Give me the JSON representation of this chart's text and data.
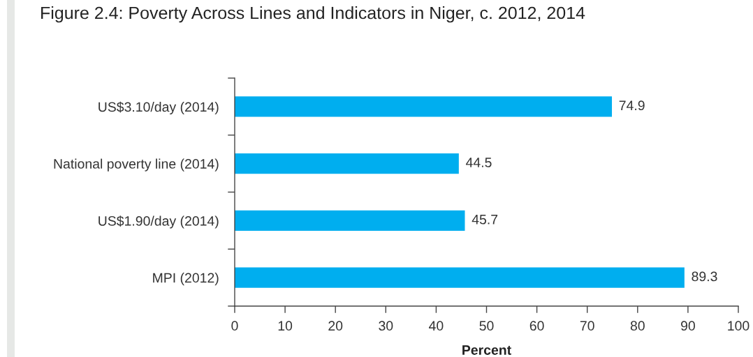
{
  "chart_data": {
    "type": "bar",
    "orientation": "horizontal",
    "title": "Figure 2.4: Poverty Across Lines and Indicators in Niger, c. 2012, 2014",
    "xlabel": "Percent",
    "categories": [
      "US$3.10/day (2014)",
      "National poverty line (2014)",
      "US$1.90/day (2014)",
      "MPI (2012)"
    ],
    "values": [
      74.9,
      44.5,
      45.7,
      89.3
    ],
    "color": "#00aeef",
    "data_labels": true,
    "xlim": [
      0,
      100
    ],
    "xticks": [
      0,
      10,
      20,
      30,
      40,
      50,
      60,
      70,
      80,
      90,
      100
    ]
  }
}
